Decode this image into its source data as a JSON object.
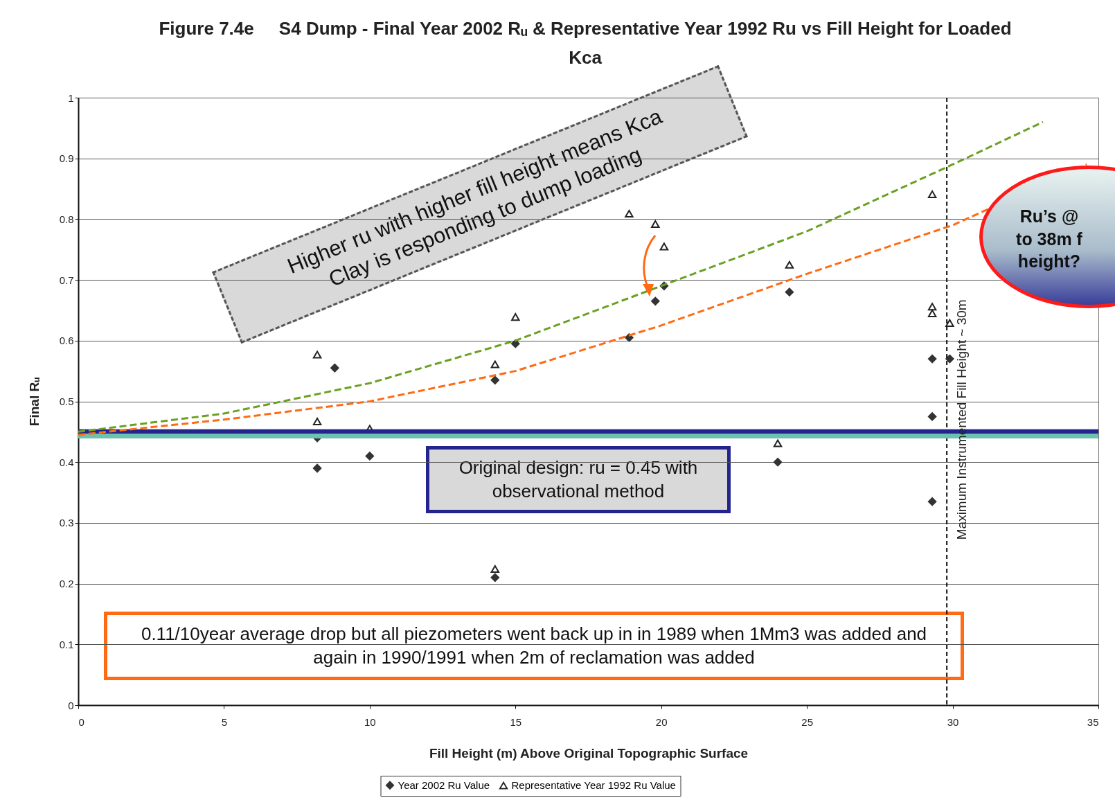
{
  "chart_data": {
    "type": "scatter",
    "title": "Figure 7.4e     S4 Dump - Final Year 2002 Rᵤ & Representative Year 1992 Ru vs Fill Height for Loaded Kca",
    "xlabel": "Fill Height (m) Above Original Topographic Surface",
    "ylabel": "Final Rᵤ",
    "xlim": [
      0,
      35
    ],
    "xticks": [
      0,
      5,
      10,
      15,
      20,
      25,
      30,
      35
    ],
    "ylim": [
      0,
      1
    ],
    "yticks": [
      0,
      0.1,
      0.2,
      0.3,
      0.4,
      0.5,
      0.6,
      0.7,
      0.8,
      0.9,
      1
    ],
    "grid": "y",
    "legend": "bottom",
    "series": [
      {
        "name": "Year 2002 Ru Value",
        "marker": "diamond",
        "color": "#333333",
        "x": [
          8.2,
          8.2,
          8.8,
          10.0,
          14.3,
          14.3,
          15.0,
          18.9,
          19.8,
          20.1,
          24.0,
          24.4,
          29.3,
          29.3,
          29.3,
          29.9
        ],
        "values": [
          0.39,
          0.44,
          0.555,
          0.41,
          0.535,
          0.21,
          0.595,
          0.605,
          0.665,
          0.69,
          0.4,
          0.68,
          0.57,
          0.475,
          0.335,
          0.57
        ]
      },
      {
        "name": "Representative Year 1992 Ru Value",
        "marker": "triangle",
        "color": "#222222",
        "x": [
          8.2,
          8.2,
          10.0,
          14.3,
          15.0,
          14.3,
          18.9,
          19.8,
          20.1,
          24.0,
          24.4,
          29.3,
          29.3,
          29.3,
          29.9
        ],
        "values": [
          0.577,
          0.467,
          0.455,
          0.561,
          0.639,
          0.224,
          0.809,
          0.792,
          0.755,
          0.431,
          0.725,
          0.841,
          0.656,
          0.645,
          0.629
        ]
      },
      {
        "type": "line",
        "line_style": "dashed",
        "color": "#6aa121",
        "x": [
          0,
          5,
          10,
          15,
          20,
          25,
          30,
          33.1
        ],
        "values": [
          0.45,
          0.48,
          0.53,
          0.6,
          0.69,
          0.78,
          0.89,
          0.96
        ]
      },
      {
        "type": "line",
        "line_style": "dashed",
        "color": "#ff6a13",
        "x": [
          0,
          5,
          10,
          15,
          20,
          25,
          30,
          34.6
        ],
        "values": [
          0.445,
          0.47,
          0.5,
          0.55,
          0.625,
          0.71,
          0.79,
          0.89
        ]
      }
    ],
    "ref_lines": [
      {
        "axis": "y",
        "value": 0.443,
        "color": "#6cc2ad",
        "line_style": "solid"
      },
      {
        "axis": "y",
        "value": 0.45,
        "color": "#24248f",
        "line_style": "solid"
      },
      {
        "axis": "x",
        "value": 29.8,
        "color": "#111111",
        "line_style": "dashed",
        "label": "Maximum Instrumented Fill Height ~ 30m"
      }
    ],
    "annotations": [
      "Higher ru with higher fill height means Kca Clay is responding to dump loading",
      "Original design: ru = 0.45 with observational method",
      "0.11/10year average drop but all piezometers went back up in  in 1989 when 1Mm3 was added and again in 1990/1991 when 2m of reclamation was added",
      "Ru’s @\nto 38m f\nheight?"
    ]
  }
}
